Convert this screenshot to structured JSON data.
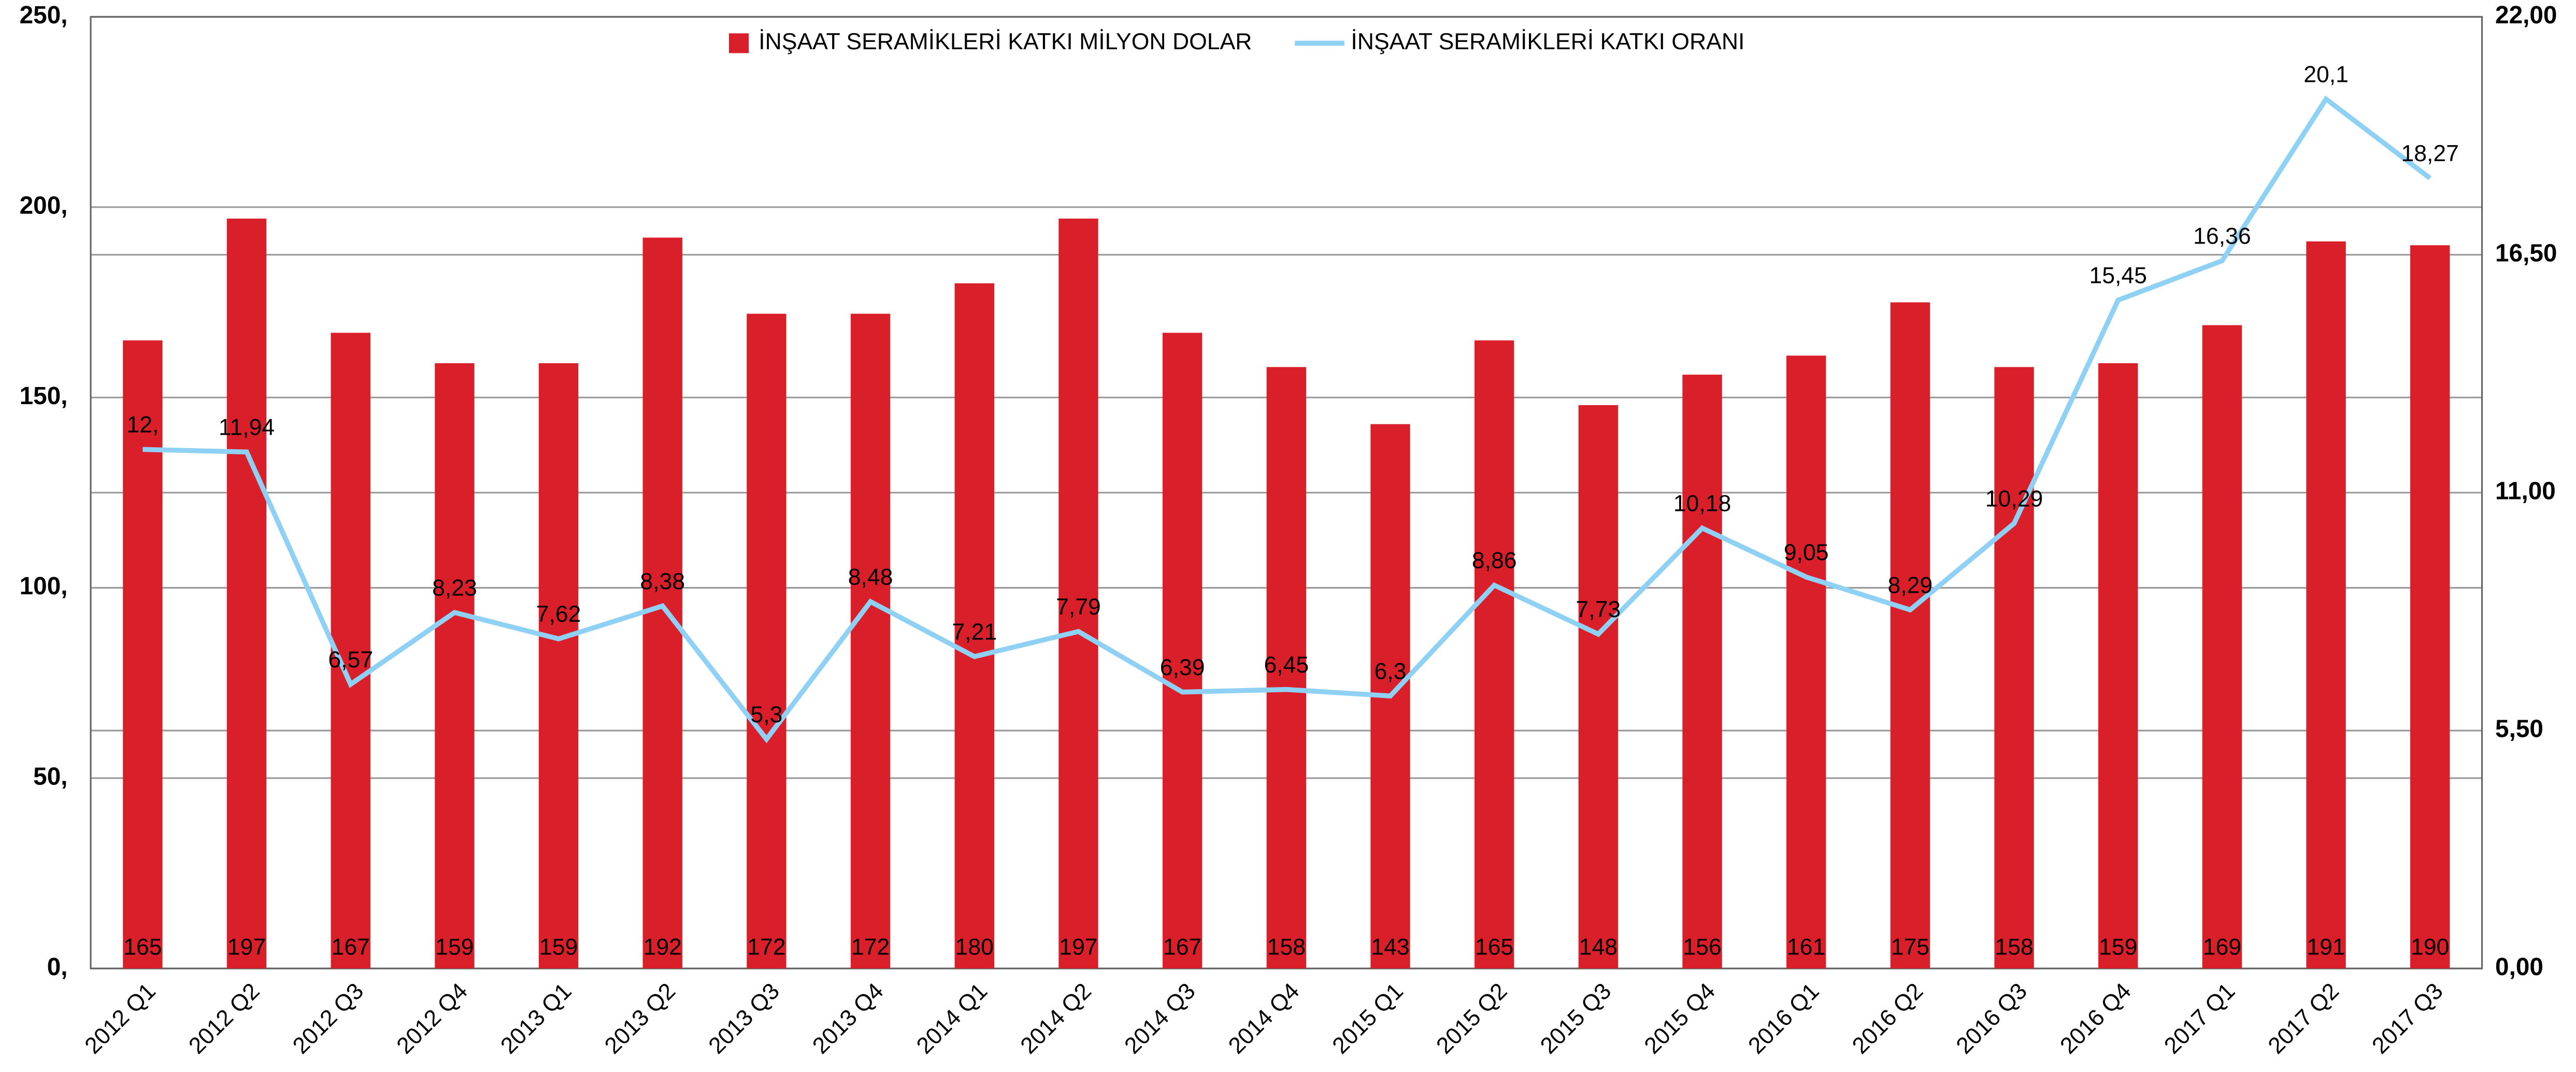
{
  "chart_data": {
    "type": "bar_line",
    "categories": [
      "2012 Q1",
      "2012 Q2",
      "2012 Q3",
      "2012 Q4",
      "2013 Q1",
      "2013 Q2",
      "2013 Q3",
      "2013 Q4",
      "2014 Q1",
      "2014 Q2",
      "2014 Q3",
      "2014 Q4",
      "2015 Q1",
      "2015 Q2",
      "2015 Q3",
      "2015 Q4",
      "2016 Q1",
      "2016 Q2",
      "2016 Q3",
      "2016 Q4",
      "2017 Q1",
      "2017 Q2",
      "2017 Q3"
    ],
    "series": [
      {
        "name": "İNŞAAT SERAMİKLERİ KATKI MİLYON DOLAR",
        "type": "bar",
        "color": "#d9202a",
        "values": [
          165,
          197,
          167,
          159,
          159,
          192,
          172,
          172,
          180,
          197,
          167,
          158,
          143,
          165,
          148,
          156,
          161,
          175,
          158,
          159,
          169,
          191,
          190
        ]
      },
      {
        "name": "İNŞAAT SERAMİKLERİ KATKI ORANI",
        "type": "line",
        "axis": "y2",
        "color": "#8fd0f5",
        "values": [
          12,
          11.94,
          6.57,
          8.23,
          7.62,
          8.38,
          5.3,
          8.48,
          7.21,
          7.79,
          6.39,
          6.45,
          6.3,
          8.86,
          7.73,
          10.18,
          9.05,
          8.29,
          10.29,
          15.45,
          16.36,
          20.1,
          18.27
        ],
        "value_labels": [
          "12,",
          "11,94",
          "6,57",
          "8,23",
          "7,62",
          "8,38",
          "5,3",
          "8,48",
          "7,21",
          "7,79",
          "6,39",
          "6,45",
          "6,3",
          "8,86",
          "7,73",
          "10,18",
          "9,05",
          "8,29",
          "10,29",
          "15,45",
          "16,36",
          "20,1",
          "18,27"
        ]
      }
    ],
    "ylim": [
      0,
      250
    ],
    "yticks": [
      {
        "value": 0,
        "label": "0,"
      },
      {
        "value": 50,
        "label": "50,"
      },
      {
        "value": 100,
        "label": "100,"
      },
      {
        "value": 150,
        "label": "150,"
      },
      {
        "value": 200,
        "label": "200,"
      },
      {
        "value": 250,
        "label": "250,"
      }
    ],
    "y2lim": [
      0,
      22
    ],
    "y2ticks": [
      {
        "value": 0,
        "label": "0,00"
      },
      {
        "value": 5.5,
        "label": "5,50"
      },
      {
        "value": 11,
        "label": "11,00"
      },
      {
        "value": 16.5,
        "label": "16,50"
      },
      {
        "value": 22,
        "label": "22,00"
      }
    ],
    "grid": true,
    "legend": "top"
  }
}
